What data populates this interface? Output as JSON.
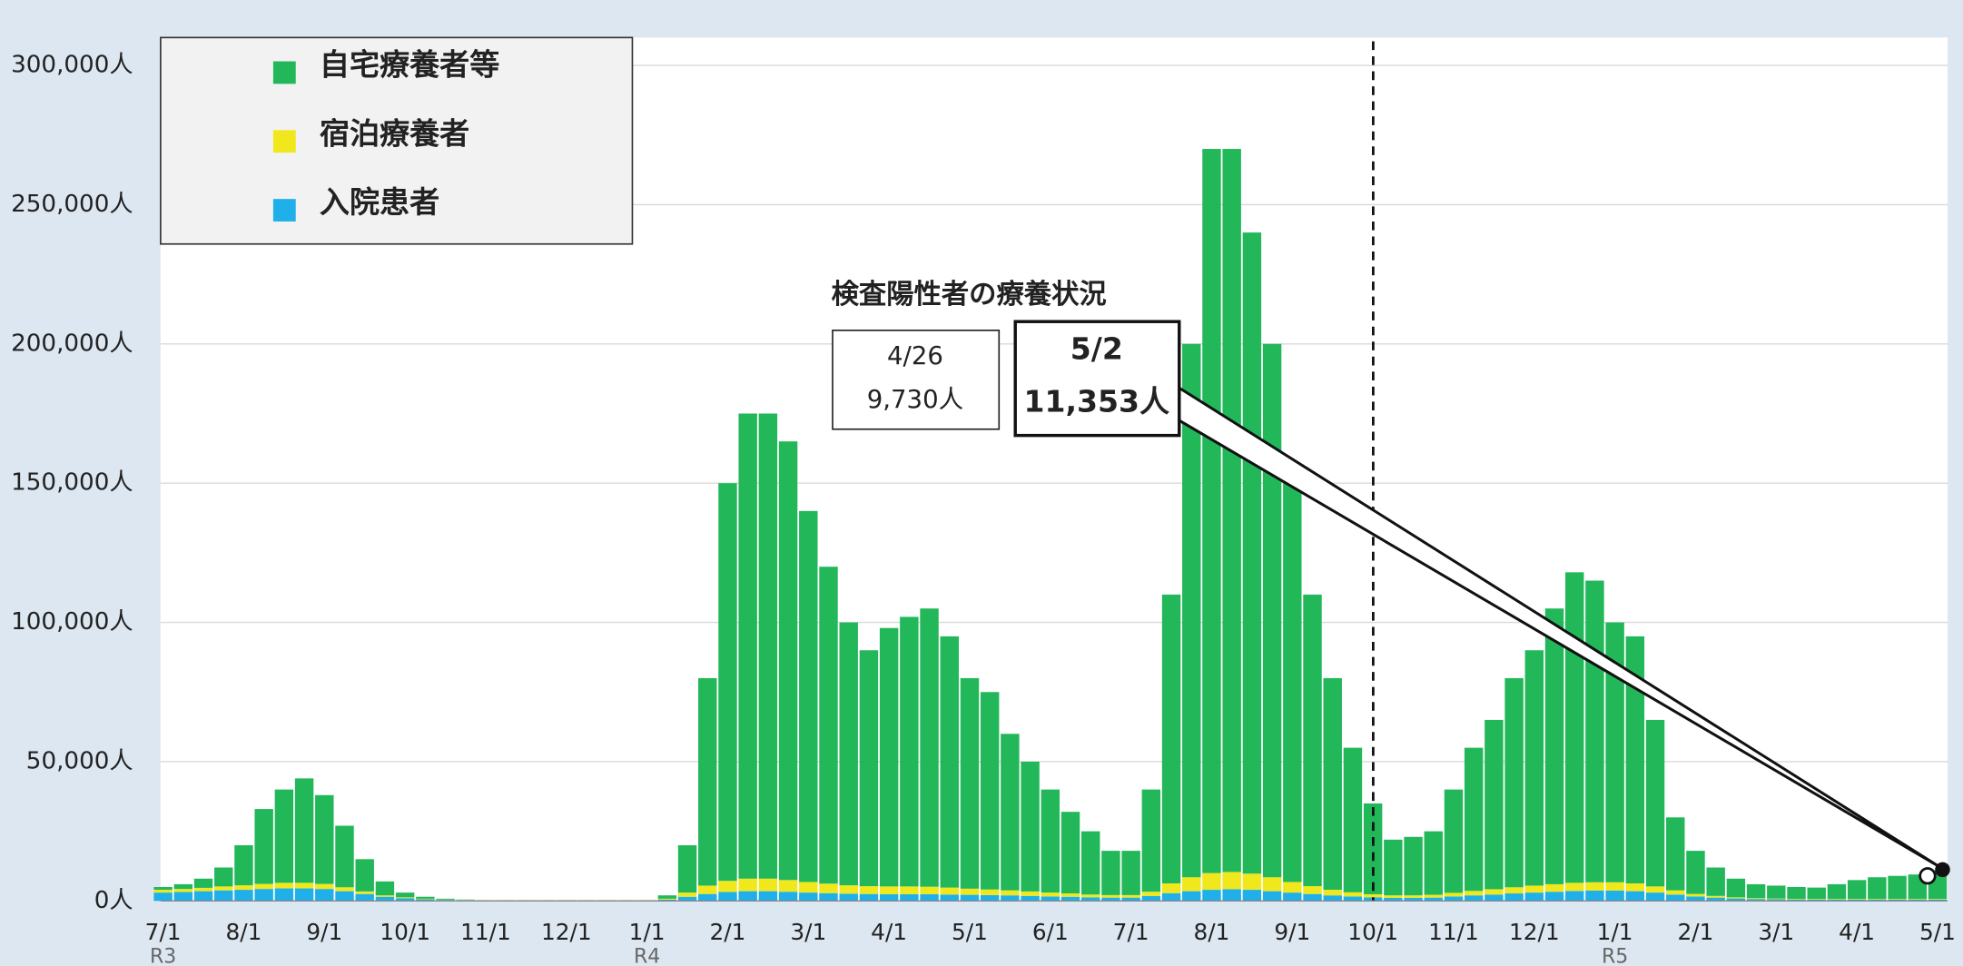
{
  "chart_data": {
    "type": "stacked_bar",
    "title": "検査陽性者の療養状況",
    "annotations": [
      {
        "date": "4/26",
        "value": "9,730人"
      },
      {
        "date": "5/2",
        "value": "11,353人"
      }
    ],
    "categories": [
      "7/1",
      null,
      null,
      null,
      "8/1",
      null,
      null,
      null,
      "9/1",
      null,
      null,
      null,
      "10/1",
      null,
      null,
      null,
      "11/1",
      null,
      null,
      null,
      "12/1",
      null,
      null,
      null,
      "1/1",
      null,
      null,
      null,
      "2/1",
      null,
      null,
      null,
      "3/1",
      null,
      null,
      null,
      "4/1",
      null,
      null,
      null,
      "5/1",
      null,
      null,
      null,
      "6/1",
      null,
      null,
      null,
      "7/1",
      null,
      null,
      null,
      "8/1",
      null,
      null,
      null,
      "9/1",
      null,
      null,
      null,
      "10/1",
      null,
      null,
      null,
      "11/1",
      null,
      null,
      null,
      "12/1",
      null,
      null,
      null,
      "1/1",
      null,
      null,
      null,
      "2/1",
      null,
      null,
      null,
      "3/1",
      null,
      null,
      null,
      "4/1",
      null,
      null,
      null,
      "5/1"
    ],
    "category_groups": [
      {
        "name": "R3",
        "start": 0
      },
      {
        "name": "R4",
        "start": 24
      },
      {
        "name": "R5",
        "start": 72
      }
    ],
    "series": [
      {
        "name": "入院患者",
        "color": "#1fb0ea",
        "values": [
          3000,
          3200,
          3500,
          3800,
          4000,
          4300,
          4500,
          4500,
          4300,
          3500,
          2500,
          1500,
          1000,
          600,
          400,
          300,
          200,
          200,
          200,
          200,
          200,
          200,
          200,
          200,
          200,
          500,
          1500,
          2500,
          3200,
          3500,
          3500,
          3300,
          3000,
          2800,
          2600,
          2500,
          2400,
          2400,
          2400,
          2300,
          2200,
          2100,
          2000,
          1800,
          1600,
          1500,
          1300,
          1200,
          1200,
          1800,
          2800,
          3500,
          4000,
          4200,
          4000,
          3500,
          3000,
          2500,
          2000,
          1600,
          1300,
          1100,
          1100,
          1200,
          1600,
          2000,
          2300,
          2700,
          3000,
          3300,
          3600,
          3700,
          3700,
          3500,
          3000,
          2300,
          1600,
          1200,
          900,
          700,
          600,
          500,
          500,
          500,
          500,
          500,
          500,
          500,
          500
        ]
      },
      {
        "name": "宿泊療養者",
        "color": "#f0e81c",
        "values": [
          1000,
          1100,
          1200,
          1400,
          1600,
          1800,
          2000,
          2000,
          1800,
          1400,
          900,
          500,
          300,
          200,
          100,
          100,
          50,
          50,
          50,
          50,
          50,
          50,
          50,
          50,
          50,
          300,
          1500,
          3000,
          4000,
          4500,
          4500,
          4200,
          3800,
          3400,
          3000,
          2800,
          2800,
          2800,
          2700,
          2500,
          2200,
          2000,
          1800,
          1600,
          1400,
          1200,
          1000,
          900,
          900,
          1500,
          3500,
          5000,
          6000,
          6200,
          5800,
          5000,
          3800,
          2800,
          2000,
          1500,
          1100,
          900,
          900,
          1000,
          1300,
          1600,
          1900,
          2200,
          2500,
          2700,
          2900,
          3000,
          3000,
          2800,
          2200,
          1500,
          900,
          600,
          400,
          300,
          250,
          200,
          200,
          200,
          200,
          200,
          200,
          200,
          200
        ]
      },
      {
        "name": "自宅療養者等",
        "color": "#22b85a",
        "values": [
          1000,
          1700,
          3300,
          6800,
          14400,
          26900,
          33500,
          37500,
          31900,
          22100,
          11600,
          5000,
          1700,
          700,
          300,
          100,
          50,
          50,
          50,
          50,
          50,
          50,
          50,
          50,
          50,
          1200,
          17000,
          74500,
          142800,
          167000,
          167000,
          157500,
          133200,
          113800,
          94400,
          84700,
          92800,
          96800,
          99900,
          90200,
          75600,
          70900,
          56200,
          46600,
          37000,
          29300,
          22700,
          15900,
          15900,
          36700,
          103700,
          191500,
          260000,
          259600,
          230200,
          191500,
          143200,
          104700,
          76000,
          51900,
          32600,
          20000,
          21000,
          22800,
          37100,
          51400,
          60800,
          75100,
          84500,
          99000,
          111500,
          108300,
          93300,
          88700,
          59800,
          26200,
          15500,
          10200,
          6700,
          5000,
          4650,
          4300,
          4100,
          5300,
          6800,
          7800,
          8300,
          8800,
          10300
        ]
      }
    ],
    "legend_order": [
      2,
      1,
      0
    ],
    "ylim": [
      0,
      310000
    ],
    "yticks": [
      {
        "value": 0,
        "label": "0人"
      },
      {
        "value": 50000,
        "label": "50,000人"
      },
      {
        "value": 100000,
        "label": "100,000人"
      },
      {
        "value": 150000,
        "label": "150,000人"
      },
      {
        "value": 200000,
        "label": "200,000人"
      },
      {
        "value": 250000,
        "label": "250,000人"
      },
      {
        "value": 300000,
        "label": "300,000人"
      }
    ],
    "grid": true
  }
}
